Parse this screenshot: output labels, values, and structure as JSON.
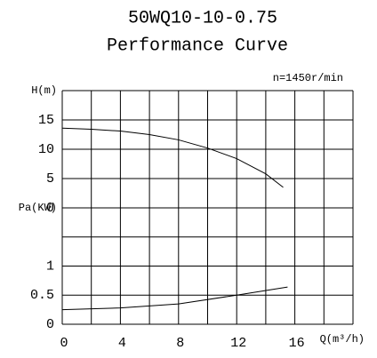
{
  "chart_data": [
    {
      "type": "line",
      "title": "50WQ10-10-0.75",
      "subtitle": "Performance Curve",
      "annotation": "n=1450r/min",
      "y_label": "H(m)",
      "xlim": [
        0,
        20
      ],
      "ylim": [
        0,
        20
      ],
      "yticks": [
        0,
        5,
        10,
        15
      ],
      "grid": true,
      "series": [
        {
          "name": "H",
          "color": "#000000",
          "x": [
            0,
            2,
            4,
            6,
            8,
            10,
            12,
            14,
            15.2
          ],
          "values": [
            13.6,
            13.4,
            13.1,
            12.5,
            11.6,
            10.2,
            8.4,
            5.8,
            3.5
          ]
        }
      ]
    },
    {
      "type": "line",
      "y_label": "Pa(KW)",
      "x_label": "Q(m³/h)",
      "xlim": [
        0,
        20
      ],
      "xticks": [
        0,
        4,
        8,
        12,
        16
      ],
      "ylim": [
        0,
        2
      ],
      "yticks": [
        0,
        0.5,
        1
      ],
      "grid": true,
      "series": [
        {
          "name": "Pa",
          "color": "#000000",
          "x": [
            0,
            4,
            8,
            12,
            15.5
          ],
          "values": [
            0.25,
            0.28,
            0.35,
            0.5,
            0.64
          ]
        }
      ]
    }
  ]
}
